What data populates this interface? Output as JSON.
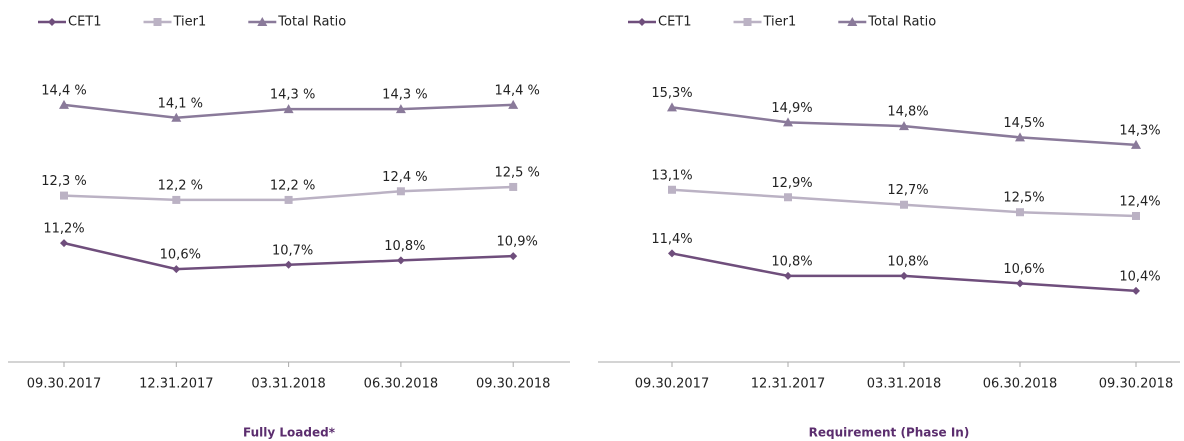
{
  "chart_data": [
    {
      "type": "line",
      "title": "Fully Loaded*",
      "legend": "top-left",
      "categories": [
        "09.30.2017",
        "12.31.2017",
        "03.31.2018",
        "06.30.2018",
        "09.30.2018"
      ],
      "ylim": [
        8.45,
        15.9
      ],
      "series": [
        {
          "name": "CET1",
          "color": "#6f4e7c",
          "marker": "diamond",
          "values": [
            11.2,
            10.6,
            10.7,
            10.8,
            10.9
          ],
          "value_labels": [
            "11,2%",
            "10,6%",
            "10,7%",
            "10,8%",
            "10,9%"
          ]
        },
        {
          "name": "Tier1",
          "color": "#bbb2c4",
          "marker": "square",
          "values": [
            12.3,
            12.2,
            12.2,
            12.4,
            12.5
          ],
          "value_labels": [
            "12,3 %",
            "12,2 %",
            "12,2 %",
            "12,4 %",
            "12,5 %"
          ]
        },
        {
          "name": "Total Ratio",
          "color": "#8a7a9a",
          "marker": "triangle",
          "values": [
            14.4,
            14.1,
            14.3,
            14.3,
            14.4
          ],
          "value_labels": [
            "14,4 %",
            "14,1 %",
            "14,3 %",
            "14,3 %",
            "14,4 %"
          ]
        }
      ]
    },
    {
      "type": "line",
      "title": "Requirement (Phase In)",
      "legend": "top-left",
      "categories": [
        "09.30.2017",
        "12.31.2017",
        "03.31.2018",
        "06.30.2018",
        "09.30.2018"
      ],
      "ylim": [
        8.5,
        17.1
      ],
      "series": [
        {
          "name": "CET1",
          "color": "#6f4e7c",
          "marker": "diamond",
          "values": [
            11.4,
            10.8,
            10.8,
            10.6,
            10.4
          ],
          "value_labels": [
            "11,4%",
            "10,8%",
            "10,8%",
            "10,6%",
            "10,4%"
          ]
        },
        {
          "name": "Tier1",
          "color": "#bbb2c4",
          "marker": "square",
          "values": [
            13.1,
            12.9,
            12.7,
            12.5,
            12.4
          ],
          "value_labels": [
            "13,1%",
            "12,9%",
            "12,7%",
            "12,5%",
            "12,4%"
          ]
        },
        {
          "name": "Total Ratio",
          "color": "#8a7a9a",
          "marker": "triangle",
          "values": [
            15.3,
            14.9,
            14.8,
            14.5,
            14.3
          ],
          "value_labels": [
            "15,3%",
            "14,9%",
            "14,8%",
            "14,5%",
            "14,3%"
          ]
        }
      ]
    }
  ]
}
